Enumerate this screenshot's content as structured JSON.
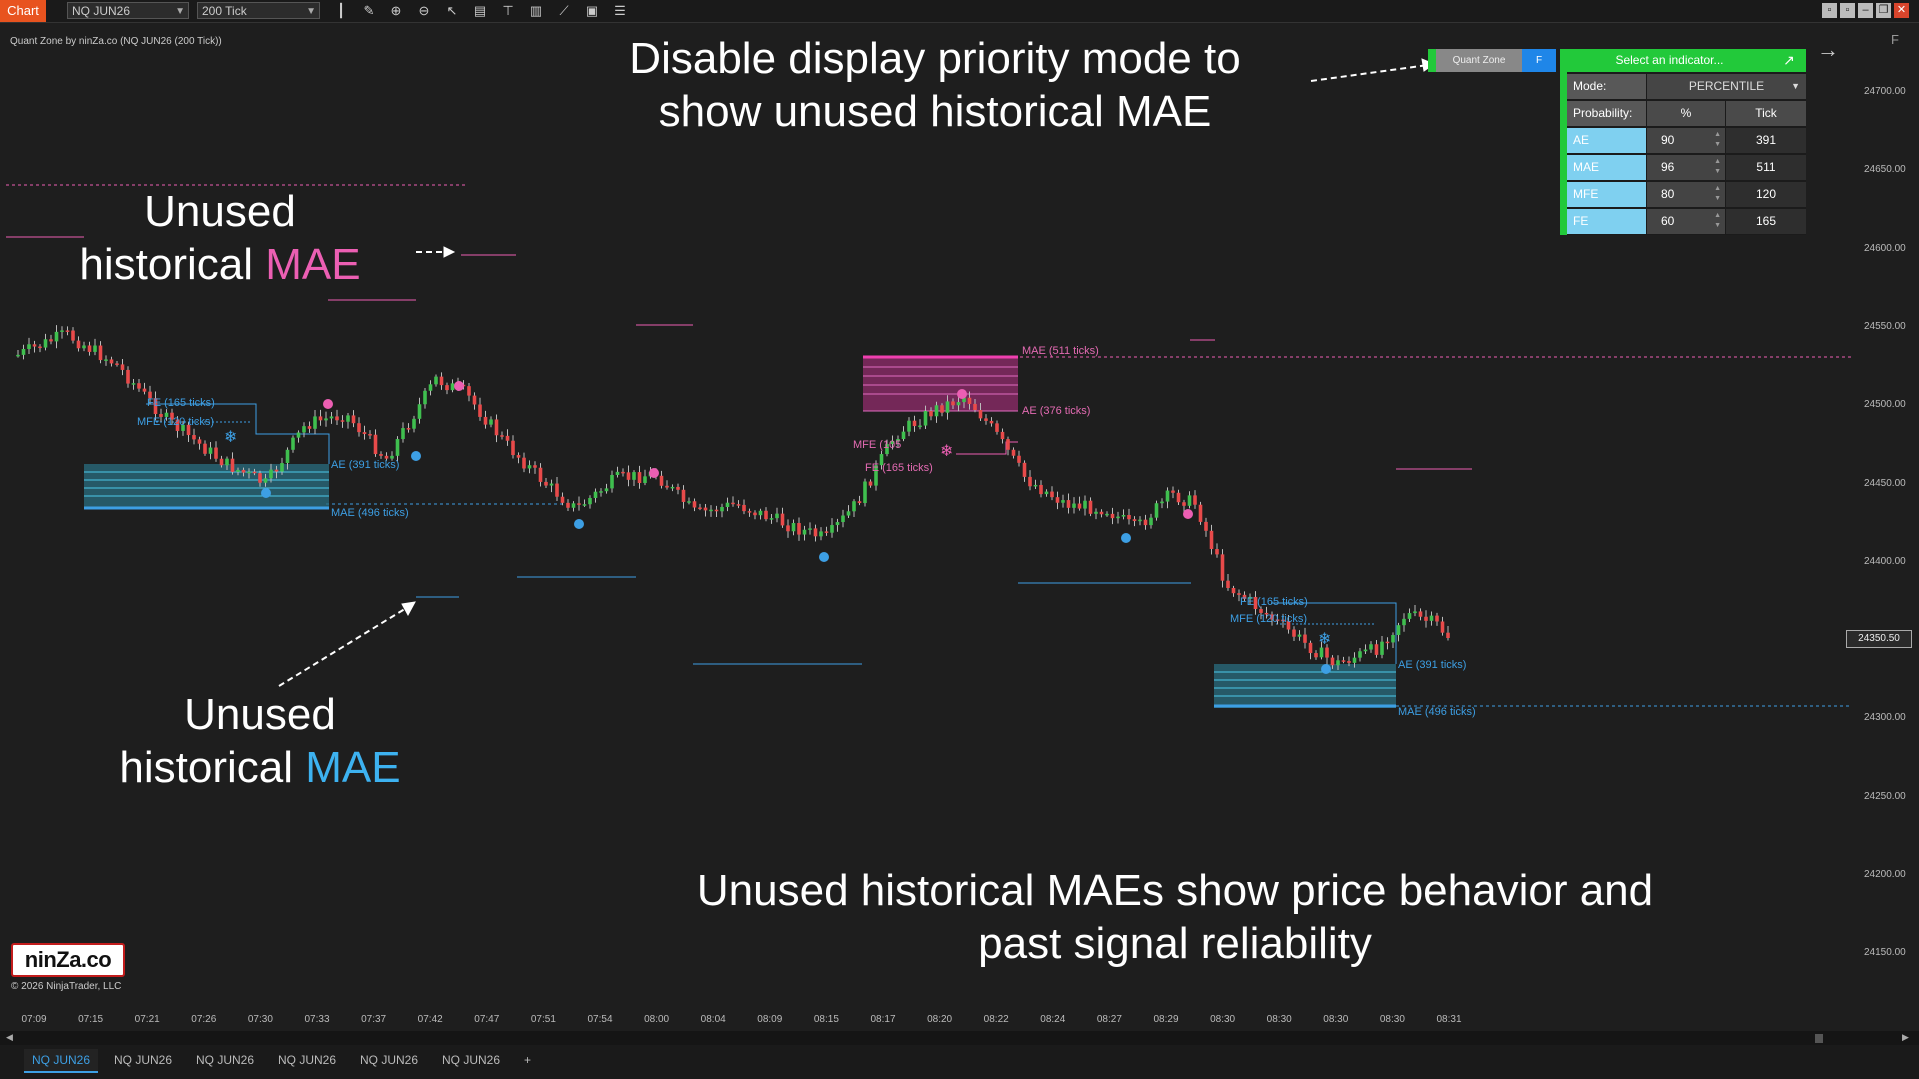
{
  "toolbar": {
    "chart_tab": "Chart",
    "instrument": "NQ JUN26",
    "interval": "200 Tick"
  },
  "chart": {
    "title": "Quant Zone by ninZa.co (NQ JUN26 (200 Tick))",
    "price_labels": [
      "24700.00",
      "24650.00",
      "24600.00",
      "24550.00",
      "24500.00",
      "24450.00",
      "24400.00",
      "24350.00",
      "24300.00",
      "24250.00",
      "24200.00",
      "24150.00"
    ],
    "current_price": "24350.50",
    "time_labels": [
      "07:09",
      "07:15",
      "07:21",
      "07:26",
      "07:30",
      "07:33",
      "07:37",
      "07:42",
      "07:47",
      "07:51",
      "07:54",
      "08:00",
      "08:04",
      "08:09",
      "08:15",
      "08:17",
      "08:20",
      "08:22",
      "08:24",
      "08:27",
      "08:29",
      "08:30",
      "08:30",
      "08:30",
      "08:30",
      "08:31"
    ],
    "zone_labels": {
      "left_fe": "FE (165 ticks)",
      "left_mfe": "MFE (120 ticks)",
      "left_ae": "AE (391 ticks)",
      "left_mae": "MAE (496 ticks)",
      "mid_mae": "MAE (511 ticks)",
      "mid_ae": "AE (376 ticks)",
      "mid_mfe": "MFE (105",
      "mid_fe": "FE (165 ticks)",
      "right_fe": "FE (165 ticks)",
      "right_mfe": "MFE (120 ticks)",
      "right_ae": "AE (391 ticks)",
      "right_mae": "MAE (496 ticks)"
    },
    "colors": {
      "pink": "#ec5fb3",
      "blue": "#3db2f0",
      "up": "#3fbf4f",
      "down": "#e84a4a"
    }
  },
  "annotations": {
    "top_line1": "Disable display priority mode to",
    "top_line2": "show unused historical MAE",
    "pink_line1": "Unused",
    "pink_line2_prefix": "historical",
    "pink_line2_word": "MAE",
    "blue_line1": "Unused",
    "blue_line2_prefix": "historical",
    "blue_line2_word": "MAE",
    "bottom_line1": "Unused historical MAEs show price behavior and",
    "bottom_line2": "past signal reliability"
  },
  "panel": {
    "quant_zone_btn": "Quant Zone",
    "f_btn": "F",
    "select_indicator": "Select an indicator...",
    "mode_label": "Mode:",
    "mode_value": "PERCENTILE",
    "probability_label": "Probability:",
    "col_percent": "%",
    "col_tick": "Tick",
    "rows": [
      {
        "label": "AE",
        "percent": "90",
        "tick": "391"
      },
      {
        "label": "MAE",
        "percent": "96",
        "tick": "511"
      },
      {
        "label": "MFE",
        "percent": "80",
        "tick": "120"
      },
      {
        "label": "FE",
        "percent": "60",
        "tick": "165"
      }
    ]
  },
  "logo": {
    "text": "ninZa.co",
    "copyright": "© 2026 NinjaTrader, LLC"
  },
  "tabs": [
    "NQ JUN26",
    "NQ JUN26",
    "NQ JUN26",
    "NQ JUN26",
    "NQ JUN26",
    "NQ JUN26"
  ],
  "add_tab": "+",
  "corner_f": "F"
}
